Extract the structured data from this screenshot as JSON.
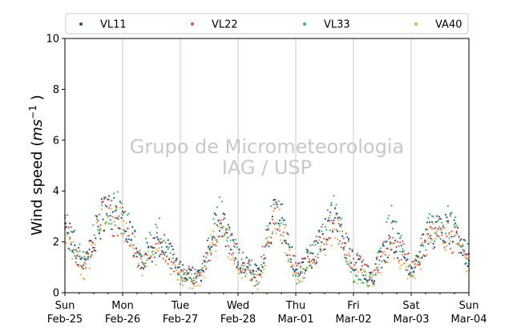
{
  "chart_data": {
    "type": "scatter",
    "ylabel": "Wind speed (ms⁻¹ )",
    "ylabel_main": "Wind speed (",
    "ylabel_unit": "ms",
    "ylabel_exp": "−1",
    "ylabel_close": " )",
    "ylim": [
      0,
      10
    ],
    "yticks": [
      "0",
      "2",
      "4",
      "6",
      "8",
      "10"
    ],
    "xlim": [
      "2018-02-25",
      "2018-03-04"
    ],
    "xticks": [
      {
        "day": "Sun",
        "date": "Feb-25"
      },
      {
        "day": "Mon",
        "date": "Feb-26"
      },
      {
        "day": "Tue",
        "date": "Feb-27"
      },
      {
        "day": "Wed",
        "date": "Feb-28"
      },
      {
        "day": "Thu",
        "date": "Mar-01"
      },
      {
        "day": "Fri",
        "date": "Mar-02"
      },
      {
        "day": "Sat",
        "date": "Mar-03"
      },
      {
        "day": "Sun",
        "date": "Mar-04"
      }
    ],
    "grid": "vertical",
    "legend_position": "top",
    "watermark": [
      "Grupo de Micrometeorologia",
      "IAG / USP"
    ],
    "series": [
      {
        "name": "VL11",
        "color": "#1f4e8c",
        "profile": [
          2.6,
          1.0,
          3.2,
          3.0,
          1.3,
          2.0,
          0.9,
          0.6,
          3.0,
          1.3,
          0.7,
          3.4,
          0.9,
          1.6,
          3.0,
          1.2,
          0.7,
          2.3,
          1.0,
          2.4,
          2.5,
          1.3
        ]
      },
      {
        "name": "VL22",
        "color": "#d9534f",
        "profile": [
          2.5,
          1.0,
          3.1,
          2.9,
          1.3,
          2.0,
          0.9,
          0.6,
          2.9,
          1.4,
          0.7,
          3.3,
          0.9,
          1.6,
          3.0,
          1.2,
          0.7,
          2.2,
          1.0,
          2.3,
          2.4,
          1.3
        ]
      },
      {
        "name": "VL33",
        "color": "#3cb371",
        "profile": [
          2.7,
          1.1,
          3.5,
          3.2,
          1.5,
          2.4,
          0.6,
          0.5,
          3.2,
          1.4,
          0.5,
          3.8,
          0.4,
          1.7,
          3.2,
          0.6,
          0.5,
          2.8,
          0.6,
          2.6,
          2.8,
          1.4
        ]
      },
      {
        "name": "VA40",
        "color": "#f5a742",
        "profile": [
          2.3,
          0.7,
          3.0,
          2.8,
          1.1,
          1.8,
          0.5,
          0.4,
          2.6,
          1.0,
          0.4,
          3.0,
          0.6,
          1.3,
          2.7,
          0.8,
          0.4,
          2.0,
          0.6,
          2.1,
          2.3,
          1.0
        ]
      }
    ]
  }
}
